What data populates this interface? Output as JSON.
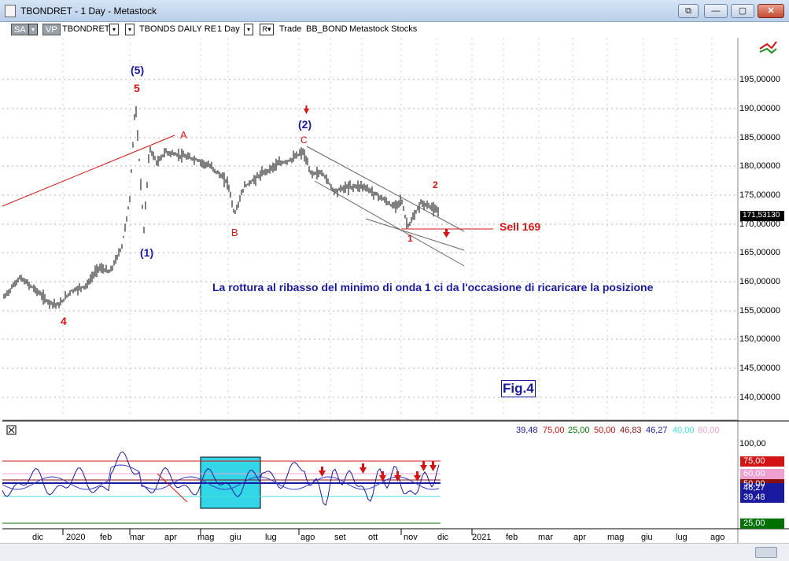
{
  "window": {
    "title": "TBONDRET - 1 Day - Metastock",
    "buttons": [
      "⧉",
      "—",
      "▢",
      "✕"
    ]
  },
  "toolbar": {
    "sa": "SA",
    "vp": "VP",
    "symbol": "TBONDRET",
    "description": "TBONDS DAILY RE",
    "period": "1 Day",
    "mode": "R",
    "trade": "Trade",
    "account": "BB_BOND",
    "broker": "Metastock Stocks"
  },
  "price_axis": {
    "labels": [
      "195,00000",
      "190,00000",
      "185,00000",
      "180,00000",
      "175,00000",
      "170,00000",
      "165,00000",
      "160,00000",
      "155,00000",
      "150,00000",
      "145,00000",
      "140,00000"
    ],
    "current": "171,53130"
  },
  "wave_labels": {
    "w5": "(5)",
    "n5": "5",
    "A": "A",
    "w2": "(2)",
    "C": "C",
    "n2": "2",
    "B": "B",
    "w1": "(1)",
    "n1": "1",
    "n4": "4"
  },
  "annotations": {
    "sell": "Sell 169",
    "comment": "La rottura al ribasso del minimo di onda 1 ci da l'occasione di ricaricare la posizione",
    "fig": "Fig.4"
  },
  "indicator": {
    "values": [
      {
        "text": "39,48",
        "color": "#1a1aa0"
      },
      {
        "text": "75,00",
        "color": "#d01010"
      },
      {
        "text": "25,00",
        "color": "#007000"
      },
      {
        "text": "50,00",
        "color": "#d01010"
      },
      {
        "text": "46,83",
        "color": "#8a1010"
      },
      {
        "text": "46,27",
        "color": "#1a1aa0"
      },
      {
        "text": "40,00",
        "color": "#40e0e0"
      },
      {
        "text": "60,00",
        "color": "#f0a0d0"
      }
    ],
    "axis_top": "100,00",
    "tags": {
      "t75": "75,00",
      "t60": "60,00",
      "t50": "50,00",
      "t4627": "46,27",
      "t3948": "39,48",
      "t25": "25,00"
    }
  },
  "x_axis": {
    "labels": [
      "dic",
      "2020",
      "feb",
      "mar",
      "apr",
      "mag",
      "giu",
      "lug",
      "ago",
      "set",
      "ott",
      "nov",
      "dic",
      "2021",
      "feb",
      "mar",
      "apr",
      "mag",
      "giu",
      "lug",
      "ago"
    ]
  },
  "colors": {
    "accent_red": "#d41414",
    "accent_blue": "#1a1aa0",
    "cyan": "#33d6e6"
  }
}
